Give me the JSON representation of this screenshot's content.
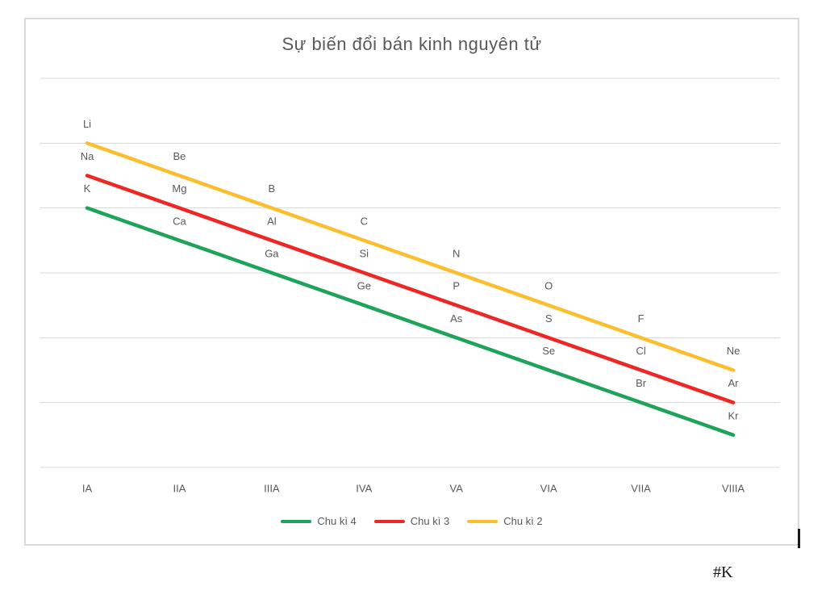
{
  "page": {
    "stray_text": "#K"
  },
  "colors": {
    "grid": "#d9d9d9",
    "frame_border": "#d9d9d9",
    "text": "#595959",
    "cursor": "#1a1a1a"
  },
  "chart_data": {
    "type": "line",
    "title": "Sự biến đổi bán kinh nguyên tử",
    "xlabel": "",
    "ylabel": "",
    "categories": [
      "IA",
      "IIA",
      "IIIA",
      "IVA",
      "VA",
      "VIA",
      "VIIA",
      "VIIIA"
    ],
    "ylim": [
      0,
      6
    ],
    "y_gridline_count": 7,
    "grid": true,
    "y_axis_labels_visible": false,
    "legend_position": "bottom",
    "legend_order": [
      2,
      1,
      0
    ],
    "value_units": "relative radius (gridline units, unlabeled axis)",
    "series": [
      {
        "name": "Chu kì 2",
        "color": "#fbbe2e",
        "values": [
          5.0,
          4.5,
          4.0,
          3.5,
          3.0,
          2.5,
          2.0,
          1.5
        ],
        "point_labels": [
          "Li",
          "Be",
          "B",
          "C",
          "N",
          "O",
          "F",
          "Ne"
        ]
      },
      {
        "name": "Chu kì 3",
        "color": "#ee2724",
        "values": [
          4.5,
          4.0,
          3.5,
          3.0,
          2.5,
          2.0,
          1.5,
          1.0
        ],
        "point_labels": [
          "Na",
          "Mg",
          "Al",
          "Si",
          "P",
          "S",
          "Cl",
          "Ar"
        ]
      },
      {
        "name": "Chu kì 4",
        "color": "#1ea35a",
        "values": [
          4.0,
          3.5,
          3.0,
          2.5,
          2.0,
          1.5,
          1.0,
          0.5
        ],
        "point_labels": [
          "K",
          "Ca",
          "Ga",
          "Ge",
          "As",
          "Se",
          "Br",
          "Kr"
        ]
      }
    ]
  }
}
